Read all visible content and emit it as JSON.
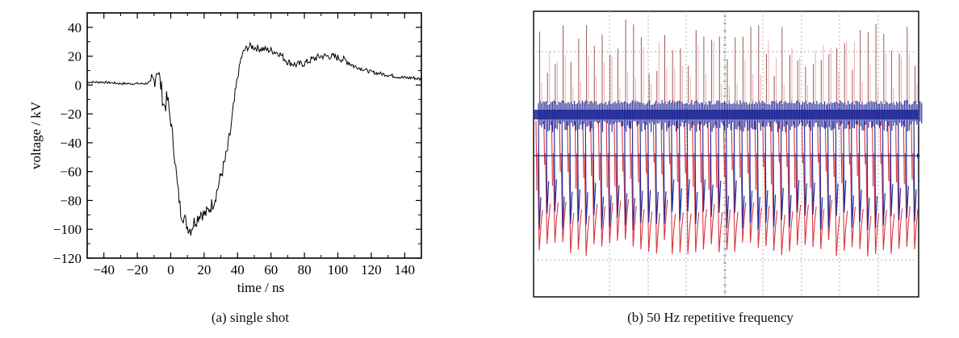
{
  "chart_data": [
    {
      "type": "line",
      "caption": "(a) single shot",
      "xlabel": "time / ns",
      "ylabel": "voltage / kV",
      "xlim": [
        -50,
        150
      ],
      "ylim": [
        -120,
        50
      ],
      "xticks": [
        -40,
        -20,
        0,
        20,
        40,
        60,
        80,
        100,
        120,
        140
      ],
      "xtick_labels": [
        "−40",
        "−20",
        "0",
        "20",
        "40",
        "60",
        "80",
        "100",
        "120",
        "140"
      ],
      "yticks": [
        40,
        20,
        0,
        -20,
        -40,
        -60,
        -80,
        -100,
        -120
      ],
      "ytick_labels": [
        "40",
        "20",
        "0",
        "−20",
        "−40",
        "−60",
        "−80",
        "−100",
        "−120"
      ],
      "grid": false,
      "series": [
        {
          "color": "#000000",
          "x": [
            -50,
            -40,
            -30,
            -20,
            -15,
            -10,
            -8,
            -6,
            -4,
            -2,
            0,
            2,
            4,
            6,
            8,
            10,
            12,
            14,
            16,
            18,
            20,
            22,
            24,
            26,
            28,
            30,
            32,
            34,
            36,
            38,
            40,
            42,
            44,
            46,
            48,
            50,
            55,
            60,
            65,
            70,
            75,
            80,
            85,
            90,
            95,
            100,
            105,
            110,
            115,
            120,
            125,
            130,
            135,
            140,
            145,
            150
          ],
          "y": [
            2,
            2,
            1,
            1,
            1,
            3,
            12,
            0,
            -15,
            -10,
            -25,
            -45,
            -70,
            -88,
            -92,
            -98,
            -100,
            -95,
            -92,
            -88,
            -90,
            -88,
            -84,
            -80,
            -72,
            -63,
            -55,
            -45,
            -30,
            -12,
            5,
            18,
            24,
            26,
            27,
            26,
            25,
            24,
            22,
            16,
            14,
            15,
            18,
            20,
            20,
            19,
            17,
            13,
            11,
            9,
            8,
            7,
            6,
            5,
            5,
            4
          ]
        }
      ]
    },
    {
      "type": "line",
      "caption": "(b) 50 Hz repetitive frequency",
      "xlabel": "",
      "ylabel": "",
      "grid": true,
      "series": [
        {
          "color": "#d6202a",
          "pulses": 49
        },
        {
          "color": "#1c2596",
          "pulses": 49
        },
        {
          "color": "#8a3b30",
          "pulses": 49
        }
      ]
    }
  ],
  "captions": {
    "a": "(a) single shot",
    "b": "(b) 50 Hz repetitive frequency"
  }
}
